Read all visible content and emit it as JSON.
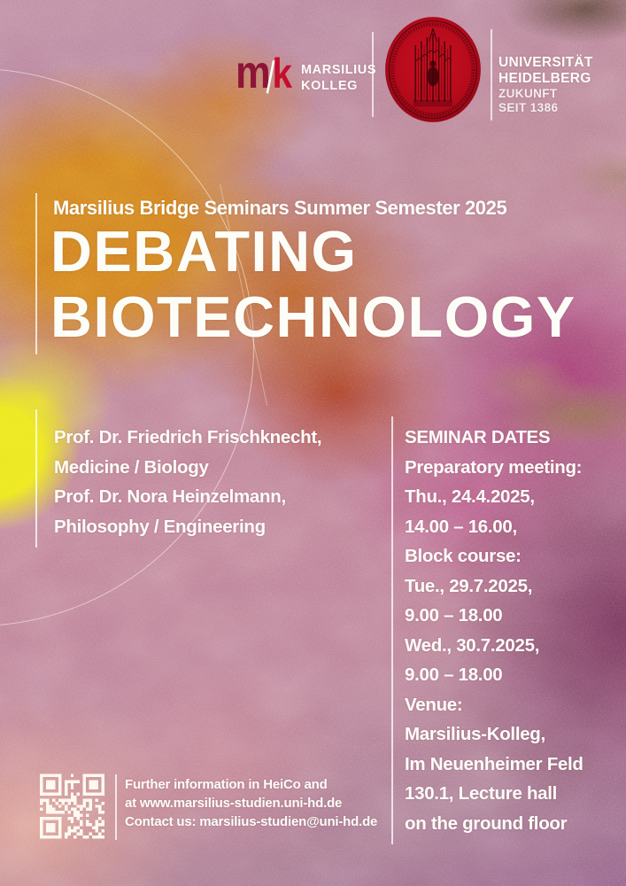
{
  "header": {
    "logo": {
      "m": "m",
      "k": "k",
      "name_line1": "MARSILIUS",
      "name_line2": "KOLLEG"
    },
    "seal_icon": "heidelberg-university-seal",
    "university": {
      "line1": "UNIVERSITÄT",
      "line2": "HEIDELBERG",
      "line3": "ZUKUNFT",
      "line4": "SEIT 1386"
    }
  },
  "title": {
    "kicker": "Marsilius Bridge Seminars Summer Semester 2025",
    "line1": "DEBATING",
    "line2": "BIOTECHNOLOGY"
  },
  "lecturers": {
    "lines": [
      "Prof. Dr. Friedrich Frischknecht,",
      "Medicine / Biology",
      "Prof. Dr. Nora Heinzelmann,",
      "Philosophy / Engineering"
    ]
  },
  "seminar": {
    "heading": "SEMINAR DATES",
    "lines": [
      "Preparatory meeting:",
      "Thu., 24.4.2025,",
      "14.00 – 16.00,",
      "Block course:",
      "Tue., 29.7.2025,",
      "9.00 – 18.00",
      "Wed., 30.7.2025,",
      "9.00 – 18.00",
      "Venue:",
      "Marsilius-Kolleg,",
      "Im Neuenheimer Feld",
      "130.1, Lecture hall",
      "on the ground floor"
    ]
  },
  "footer": {
    "qr_icon": "qr-code",
    "lines": [
      "Further information in HeiCo and",
      "at www.marsilius-studien.uni-hd.de",
      "Contact us: marsilius-studien@uni-hd.de"
    ]
  },
  "colors": {
    "brand_dark_red": "#8e1437",
    "brand_red": "#c50d2e",
    "seal_red": "#b30a1b",
    "text_white": "#fdfdf8",
    "bg_mauve": "#bd8aa0",
    "bg_orange": "#d2801a",
    "bg_yellow": "#ece71c",
    "bg_crimson": "#a83a21",
    "bg_magenta": "#9a3068",
    "bg_purple": "#6e2f55",
    "bg_salmon": "#e1a294",
    "bg_olive": "#8f7a49"
  }
}
